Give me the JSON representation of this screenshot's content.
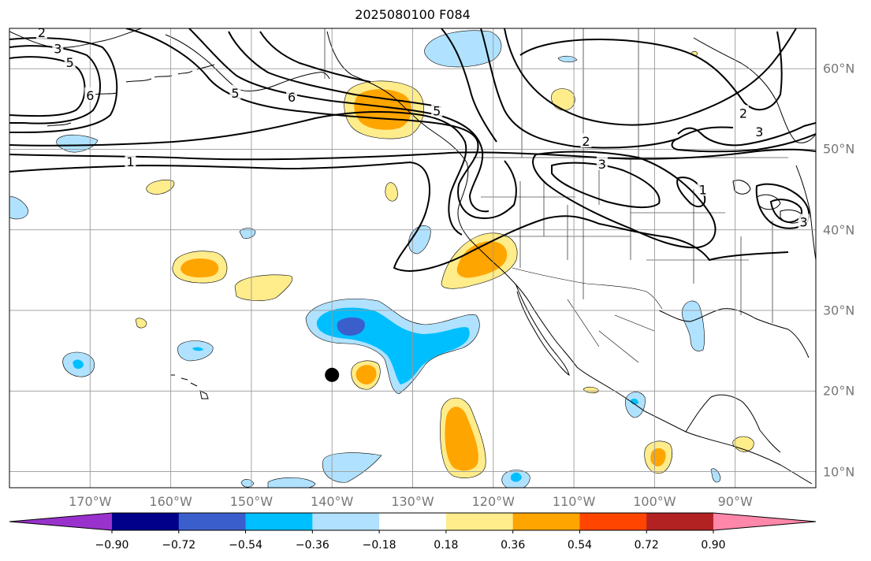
{
  "title": "2025080100 F084",
  "map": {
    "projection": "PlateCarree",
    "extent": {
      "lon_min": -180,
      "lon_max": -80,
      "lat_min": 8,
      "lat_max": 65
    },
    "gridlines": true,
    "lon_labels": [
      {
        "lon": -170,
        "text": "170°W"
      },
      {
        "lon": -160,
        "text": "160°W"
      },
      {
        "lon": -150,
        "text": "150°W"
      },
      {
        "lon": -140,
        "text": "140°W"
      },
      {
        "lon": -130,
        "text": "130°W"
      },
      {
        "lon": -120,
        "text": "120°W"
      },
      {
        "lon": -110,
        "text": "110°W"
      },
      {
        "lon": -100,
        "text": "100°W"
      },
      {
        "lon": -90,
        "text": "90°W"
      }
    ],
    "lat_labels": [
      {
        "lat": 60,
        "text": "60°N"
      },
      {
        "lat": 50,
        "text": "50°N"
      },
      {
        "lat": 40,
        "text": "40°N"
      },
      {
        "lat": 30,
        "text": "30°N"
      },
      {
        "lat": 20,
        "text": "20°N"
      },
      {
        "lat": 10,
        "text": "10°N"
      }
    ],
    "marker": {
      "lon": -140,
      "lat": 22,
      "label": "black-dot"
    },
    "contour_labels": [
      {
        "text": "2",
        "lon": -176,
        "lat": 64.5
      },
      {
        "text": "3",
        "lon": -174,
        "lat": 62.5
      },
      {
        "text": "5",
        "lon": -172.5,
        "lat": 60.8
      },
      {
        "text": "6",
        "lon": -170,
        "lat": 56.7
      },
      {
        "text": "1",
        "lon": -165,
        "lat": 48.5
      },
      {
        "text": "6",
        "lon": -145,
        "lat": 56.5
      },
      {
        "text": "5",
        "lon": -152,
        "lat": 57
      },
      {
        "text": "5",
        "lon": -127,
        "lat": 54.8
      },
      {
        "text": "2",
        "lon": -108.5,
        "lat": 51
      },
      {
        "text": "3",
        "lon": -106.5,
        "lat": 48.2
      },
      {
        "text": "2",
        "lon": -89,
        "lat": 54.5
      },
      {
        "text": "3",
        "lon": -87,
        "lat": 52.2
      },
      {
        "text": "3",
        "lon": -81.5,
        "lat": 41
      },
      {
        "text": "1",
        "lon": -94,
        "lat": 45
      }
    ]
  },
  "colorbar": {
    "colors": [
      "#9932cc",
      "#00008b",
      "#3a5fcd",
      "#00bfff",
      "#b0e2ff",
      "#ffffff",
      "#ffec8b",
      "#ffa500",
      "#ff4500",
      "#b22222",
      "#ff88aa"
    ],
    "ticks": [
      "−0.90",
      "−0.72",
      "−0.54",
      "−0.36",
      "−0.18",
      "0.18",
      "0.36",
      "0.54",
      "0.72",
      "0.90"
    ]
  },
  "colors": {
    "ocean": "#ffffff",
    "coast": "#000000",
    "grid": "#999999",
    "contour": "#000000"
  }
}
